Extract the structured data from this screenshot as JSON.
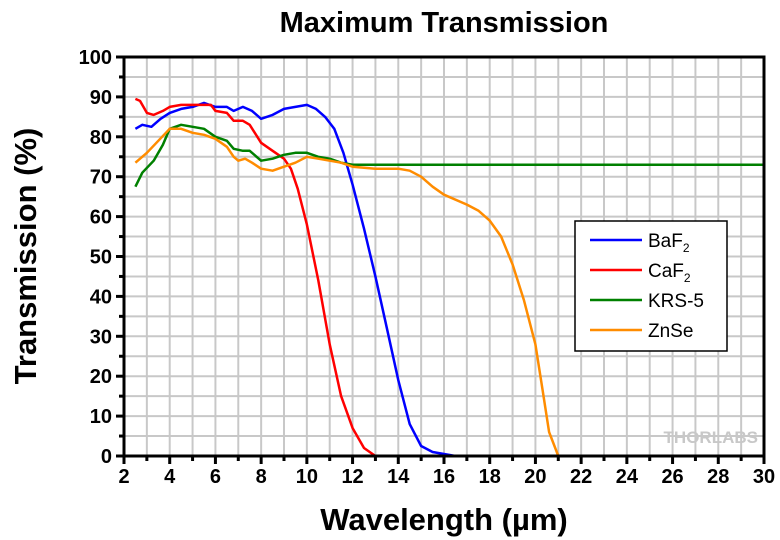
{
  "chart_data": {
    "type": "line",
    "title": "Maximum Transmission",
    "xlabel": "Wavelength (µm)",
    "ylabel": "Transmission (%)",
    "xlim": [
      2,
      30
    ],
    "ylim": [
      0,
      100
    ],
    "xticks": [
      2,
      4,
      6,
      8,
      10,
      12,
      14,
      16,
      18,
      20,
      22,
      24,
      26,
      28,
      30
    ],
    "yticks": [
      0,
      10,
      20,
      30,
      40,
      50,
      60,
      70,
      80,
      90,
      100
    ],
    "grid": true,
    "legend_position": "right",
    "watermark": "THORLABS",
    "series": [
      {
        "name": "BaF",
        "sub": "2",
        "color": "#0000ff",
        "x": [
          2.5,
          2.8,
          3.2,
          3.6,
          4,
          4.5,
          5,
          5.5,
          6,
          6.5,
          6.8,
          7.2,
          7.6,
          8,
          8.5,
          9,
          9.5,
          10,
          10.4,
          10.8,
          11.2,
          11.6,
          12,
          12.5,
          13,
          13.5,
          14,
          14.5,
          15,
          15.5,
          16,
          16.5
        ],
        "y": [
          82,
          83,
          82.5,
          84.5,
          86,
          87,
          87.5,
          88.5,
          87.5,
          87.5,
          86.5,
          87.5,
          86.5,
          84.5,
          85.5,
          87,
          87.5,
          88,
          87,
          85,
          82,
          76,
          68,
          57,
          45,
          32,
          19,
          8,
          2.5,
          1,
          0.5,
          0
        ]
      },
      {
        "name": "CaF",
        "sub": "2",
        "color": "#ff0000",
        "x": [
          2.5,
          2.7,
          3,
          3.3,
          3.7,
          4,
          4.5,
          5,
          5.5,
          5.8,
          6,
          6.5,
          6.8,
          7.2,
          7.5,
          8,
          8.5,
          9,
          9.3,
          9.6,
          10,
          10.5,
          11,
          11.5,
          12,
          12.5,
          13
        ],
        "y": [
          89.5,
          89,
          86,
          85.5,
          86.5,
          87.5,
          88,
          88,
          88,
          88,
          86.5,
          86,
          84,
          84,
          83,
          78.5,
          76.5,
          74.5,
          72,
          67,
          58,
          44,
          28,
          15,
          7,
          2,
          0
        ]
      },
      {
        "name": "KRS-5",
        "sub": "",
        "color": "#008000",
        "x": [
          2.5,
          2.8,
          3.3,
          3.7,
          4,
          4.5,
          5,
          5.5,
          6,
          6.5,
          6.8,
          7.2,
          7.5,
          8,
          8.5,
          9,
          9.5,
          10,
          10.5,
          11,
          11.5,
          12,
          30
        ],
        "y": [
          67.5,
          71,
          74,
          78,
          82,
          83,
          82.5,
          82,
          80,
          79,
          77,
          76.5,
          76.5,
          74,
          74.5,
          75.5,
          76,
          76,
          75,
          74.5,
          73.5,
          73,
          73
        ]
      },
      {
        "name": "ZnSe",
        "sub": "",
        "color": "#ff8c00",
        "x": [
          2.5,
          3,
          3.5,
          4,
          4.5,
          5,
          5.5,
          6,
          6.5,
          6.8,
          7,
          7.3,
          7.6,
          8,
          8.5,
          9,
          9.5,
          10,
          10.5,
          11,
          11.5,
          12,
          13,
          14,
          14.5,
          15,
          15.5,
          16,
          17,
          17.5,
          18,
          18.5,
          19,
          19.5,
          20,
          20.3,
          20.6,
          21
        ],
        "y": [
          73.5,
          76,
          79,
          82,
          82,
          81,
          80.5,
          79.5,
          77.5,
          75,
          74,
          74.5,
          73.5,
          72,
          71.5,
          72.5,
          73.5,
          75,
          74.5,
          74,
          73.5,
          72.5,
          72,
          72,
          71.5,
          70,
          67.5,
          65.5,
          63,
          61.5,
          59,
          55,
          48,
          39,
          28,
          17,
          6,
          0
        ]
      }
    ]
  }
}
